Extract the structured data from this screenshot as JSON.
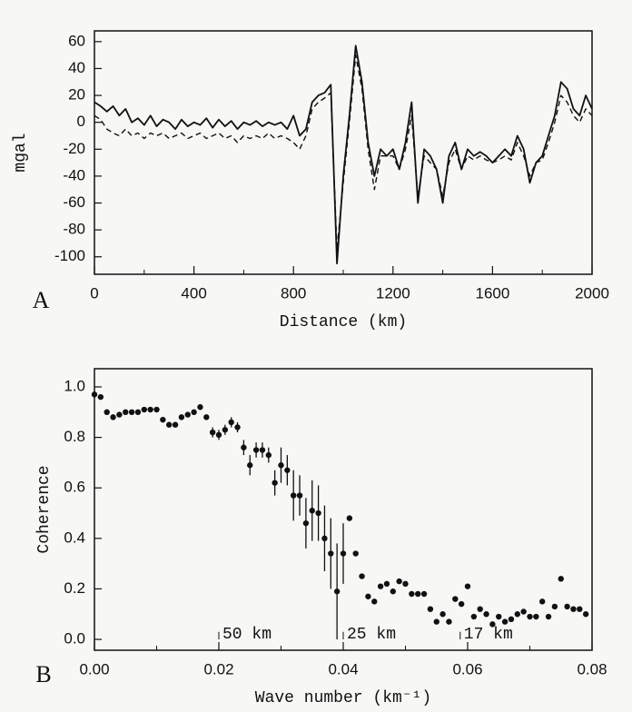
{
  "chart_data": [
    {
      "type": "line",
      "panel_label": "A",
      "xlabel": "Distance (km)",
      "ylabel": "mgal",
      "xlim": [
        0,
        2000
      ],
      "ylim": [
        -113,
        68
      ],
      "xticks": [
        0,
        400,
        800,
        1200,
        1600,
        2000
      ],
      "xminorticks": [
        200,
        600,
        1000,
        1400,
        1800
      ],
      "yticks": [
        60,
        40,
        20,
        0,
        -20,
        -40,
        -60,
        -80,
        -100
      ],
      "x": [
        0,
        25,
        50,
        75,
        100,
        125,
        150,
        175,
        200,
        225,
        250,
        275,
        300,
        325,
        350,
        375,
        400,
        425,
        450,
        475,
        500,
        525,
        550,
        575,
        600,
        625,
        650,
        675,
        700,
        725,
        750,
        775,
        800,
        825,
        850,
        875,
        900,
        925,
        950,
        975,
        1000,
        1025,
        1050,
        1075,
        1100,
        1125,
        1150,
        1175,
        1200,
        1225,
        1250,
        1275,
        1300,
        1325,
        1350,
        1375,
        1400,
        1425,
        1450,
        1475,
        1500,
        1525,
        1550,
        1575,
        1600,
        1625,
        1650,
        1675,
        1700,
        1725,
        1750,
        1775,
        1800,
        1825,
        1850,
        1875,
        1900,
        1925,
        1950,
        1975,
        2000
      ],
      "series": [
        {
          "color": "#111111",
          "dash": false,
          "values": [
            15,
            12,
            8,
            12,
            5,
            10,
            0,
            3,
            -2,
            5,
            -3,
            2,
            0,
            -5,
            2,
            -3,
            0,
            -2,
            3,
            -4,
            2,
            -3,
            1,
            -5,
            0,
            -2,
            1,
            -3,
            0,
            -2,
            0,
            -5,
            5,
            -10,
            -5,
            15,
            20,
            22,
            28,
            -105,
            -40,
            5,
            57,
            30,
            -15,
            -40,
            -20,
            -25,
            -20,
            -35,
            -15,
            15,
            -60,
            -20,
            -25,
            -35,
            -60,
            -25,
            -15,
            -35,
            -20,
            -25,
            -22,
            -25,
            -30,
            -25,
            -20,
            -25,
            -10,
            -20,
            -45,
            -30,
            -25,
            -10,
            5,
            30,
            25,
            10,
            5,
            20,
            10
          ]
        },
        {
          "color": "#111111",
          "dash": true,
          "values": [
            5,
            2,
            -5,
            -8,
            -10,
            -5,
            -10,
            -8,
            -12,
            -8,
            -10,
            -8,
            -12,
            -10,
            -8,
            -12,
            -10,
            -8,
            -12,
            -10,
            -8,
            -12,
            -10,
            -15,
            -10,
            -12,
            -10,
            -12,
            -8,
            -12,
            -10,
            -12,
            -15,
            -20,
            -10,
            10,
            15,
            18,
            22,
            -95,
            -45,
            0,
            50,
            25,
            -20,
            -50,
            -25,
            -25,
            -25,
            -35,
            -20,
            5,
            -55,
            -25,
            -30,
            -35,
            -55,
            -30,
            -20,
            -35,
            -25,
            -28,
            -25,
            -28,
            -30,
            -28,
            -25,
            -28,
            -15,
            -25,
            -40,
            -30,
            -28,
            -15,
            0,
            20,
            15,
            5,
            0,
            10,
            5
          ]
        }
      ]
    },
    {
      "type": "scatter",
      "panel_label": "B",
      "xlabel": "Wave number (km⁻¹)",
      "ylabel": "Coherence",
      "xlim": [
        0,
        0.08
      ],
      "ylim": [
        -0.043,
        1.072
      ],
      "xticks": [
        {
          "value": 0,
          "label": "0.00"
        },
        0.02,
        0.04,
        0.06,
        0.08
      ],
      "xminorticks": [
        0.01,
        0.03,
        0.05,
        0.07
      ],
      "yticks": [
        {
          "value": 0,
          "label": "0.0"
        },
        0.2,
        0.4,
        0.6,
        0.8,
        {
          "value": 1,
          "label": "1.0"
        }
      ],
      "color": "#111111",
      "annotations": [
        {
          "text": "50 km",
          "x": 0.02
        },
        {
          "text": "25 km",
          "x": 0.04
        },
        {
          "text": "17 km",
          "x": 0.0588
        }
      ],
      "x": [
        0,
        0.001,
        0.002,
        0.003,
        0.004,
        0.005,
        0.006,
        0.007,
        0.008,
        0.009,
        0.01,
        0.011,
        0.012,
        0.013,
        0.014,
        0.015,
        0.016,
        0.017,
        0.018,
        0.019,
        0.02,
        0.021,
        0.022,
        0.023,
        0.024,
        0.025,
        0.026,
        0.027,
        0.028,
        0.029,
        0.03,
        0.031,
        0.032,
        0.033,
        0.034,
        0.035,
        0.036,
        0.037,
        0.038,
        0.039,
        0.04,
        0.041,
        0.042,
        0.043,
        0.044,
        0.045,
        0.046,
        0.047,
        0.048,
        0.049,
        0.05,
        0.051,
        0.052,
        0.053,
        0.054,
        0.055,
        0.056,
        0.057,
        0.058,
        0.059,
        0.06,
        0.061,
        0.062,
        0.063,
        0.064,
        0.065,
        0.066,
        0.067,
        0.068,
        0.069,
        0.07,
        0.071,
        0.072,
        0.073,
        0.074,
        0.075,
        0.076,
        0.077,
        0.078,
        0.079
      ],
      "values": [
        0.97,
        0.96,
        0.9,
        0.88,
        0.89,
        0.9,
        0.9,
        0.9,
        0.91,
        0.91,
        0.91,
        0.87,
        0.85,
        0.85,
        0.88,
        0.89,
        0.9,
        0.92,
        0.88,
        0.82,
        0.81,
        0.83,
        0.86,
        0.84,
        0.76,
        0.69,
        0.75,
        0.75,
        0.73,
        0.62,
        0.69,
        0.67,
        0.57,
        0.57,
        0.46,
        0.51,
        0.5,
        0.4,
        0.34,
        0.19,
        0.34,
        0.48,
        0.34,
        0.25,
        0.17,
        0.15,
        0.21,
        0.22,
        0.19,
        0.23,
        0.22,
        0.18,
        0.18,
        0.18,
        0.12,
        0.07,
        0.1,
        0.07,
        0.16,
        0.14,
        0.21,
        0.09,
        0.12,
        0.1,
        0.06,
        0.09,
        0.07,
        0.08,
        0.1,
        0.11,
        0.09,
        0.09,
        0.15,
        0.09,
        0.13,
        0.24,
        0.13,
        0.12,
        0.12,
        0.1
      ],
      "errors": [
        0.01,
        0.01,
        0.01,
        0.01,
        0.01,
        0.01,
        0.01,
        0.01,
        0.01,
        0.01,
        0.01,
        0.01,
        0.01,
        0.01,
        0.01,
        0.01,
        0.01,
        0.01,
        0.01,
        0.02,
        0.02,
        0.02,
        0.02,
        0.02,
        0.03,
        0.04,
        0.03,
        0.03,
        0.03,
        0.05,
        0.07,
        0.06,
        0.1,
        0.08,
        0.1,
        0.12,
        0.11,
        0.13,
        0.14,
        0.19,
        0.12,
        0,
        0,
        0,
        0,
        0,
        0,
        0,
        0,
        0,
        0,
        0,
        0,
        0,
        0,
        0,
        0,
        0,
        0,
        0,
        0,
        0,
        0,
        0,
        0,
        0,
        0,
        0,
        0,
        0,
        0,
        0,
        0,
        0,
        0,
        0,
        0,
        0,
        0,
        0
      ]
    }
  ]
}
